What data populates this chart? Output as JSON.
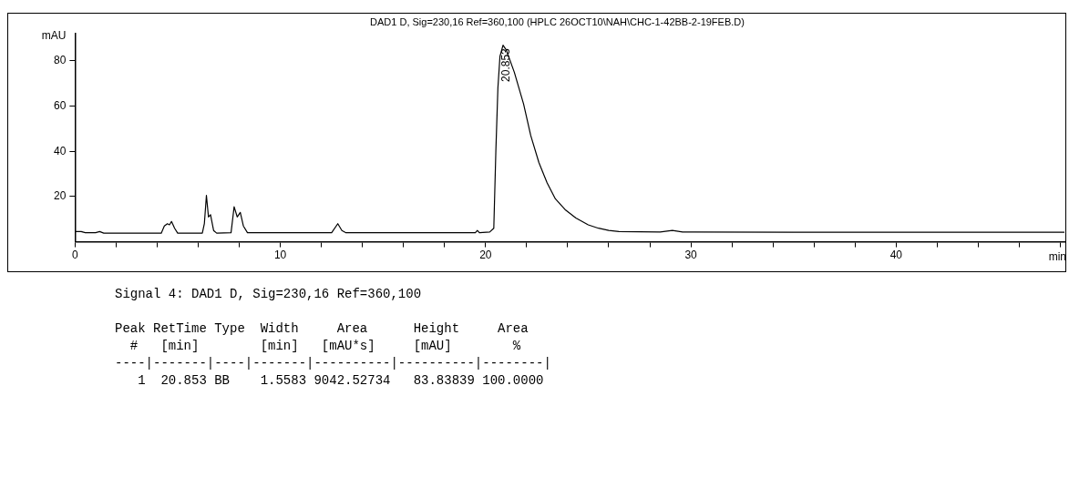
{
  "chart_data": {
    "type": "line",
    "title": "DAD1 D, Sig=230,16 Ref=360,100 (HPLC 26OCT10\\NAH\\CHC-1-42BB-2-19FEB.D)",
    "xlabel": "min",
    "ylabel": "mAU",
    "x": [
      0,
      0.3,
      0.5,
      1,
      1.2,
      1.4,
      4.2,
      4.35,
      4.5,
      4.6,
      4.7,
      4.85,
      5.0,
      6.2,
      6.3,
      6.4,
      6.5,
      6.6,
      6.75,
      6.9,
      7.6,
      7.75,
      7.9,
      8.05,
      8.2,
      8.4,
      12.5,
      12.8,
      13.0,
      13.2,
      19.5,
      19.6,
      19.7,
      20.2,
      20.4,
      20.5,
      20.6,
      20.7,
      20.85,
      21.0,
      21.4,
      21.85,
      22.2,
      22.6,
      23.0,
      23.4,
      23.9,
      24.4,
      25.0,
      25.5,
      26.0,
      26.5,
      28.5,
      29.1,
      29.6,
      35,
      48.2
    ],
    "series": [
      {
        "color": "#000000",
        "values": [
          4.5,
          4.5,
          4,
          4,
          4.5,
          3.8,
          3.8,
          7,
          8,
          7.5,
          9,
          6,
          3.8,
          3.8,
          8,
          20.5,
          11,
          12,
          5,
          3.8,
          4,
          15.5,
          11,
          13,
          7,
          4,
          4,
          8,
          5,
          4,
          4,
          5,
          4,
          4.3,
          6,
          40,
          68,
          82,
          87,
          85,
          75,
          61,
          47,
          35,
          26,
          19,
          14,
          10.5,
          7.5,
          6,
          5,
          4.5,
          4.3,
          5,
          4.3,
          4.2,
          4.2
        ]
      }
    ],
    "xlim": [
      0,
      48.2
    ],
    "xticks": [
      0,
      {
        "value": 2,
        "label": null
      },
      {
        "value": 4,
        "label": null
      },
      {
        "value": 6,
        "label": null
      },
      {
        "value": 8,
        "label": null
      },
      10,
      {
        "value": 12,
        "label": null
      },
      {
        "value": 14,
        "label": null
      },
      {
        "value": 16,
        "label": null
      },
      {
        "value": 18,
        "label": null
      },
      20,
      {
        "value": 22,
        "label": null
      },
      {
        "value": 24,
        "label": null
      },
      {
        "value": 26,
        "label": null
      },
      {
        "value": 28,
        "label": null
      },
      30,
      {
        "value": 32,
        "label": null
      },
      {
        "value": 34,
        "label": null
      },
      {
        "value": 36,
        "label": null
      },
      {
        "value": 38,
        "label": null
      },
      40,
      {
        "value": 42,
        "label": null
      },
      {
        "value": 44,
        "label": null
      },
      {
        "value": 46,
        "label": null
      },
      {
        "value": 48,
        "label": null
      }
    ],
    "ylim": [
      0,
      92
    ],
    "yticks": [
      20,
      40,
      60,
      80
    ],
    "grid": false,
    "legend": false,
    "marker": "none",
    "line_style": "solid",
    "annotations": [
      {
        "text": "20.853",
        "x": 20.853,
        "y": 87
      },
      "Signal 4: DAD1 D, Sig=230,16 Ref=360,100",
      "Peak RetTime Type  Width     Area      Height     Area  ",
      "  #   [min]        [min]   [mAU*s]     [mAU]        %   ",
      "----|-------|----|-------|----------|----------|--------|",
      "   1  20.853 BB    1.5583 9042.52734   83.83839 100.0000"
    ]
  }
}
